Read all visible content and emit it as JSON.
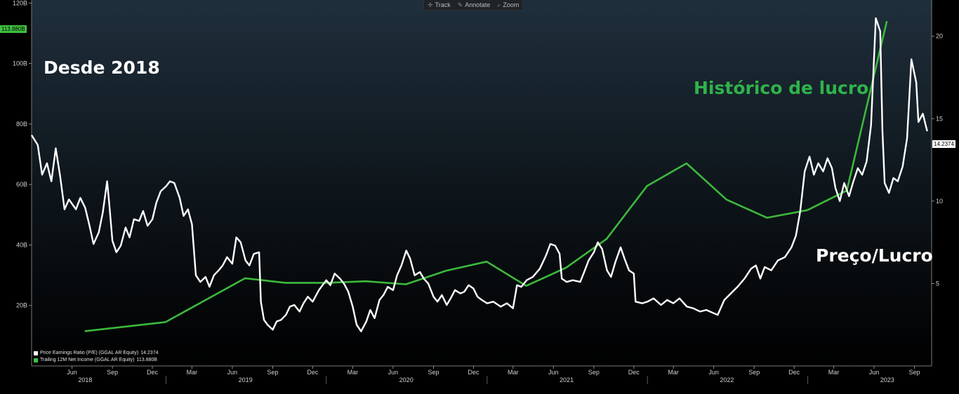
{
  "toolbar": {
    "items": [
      {
        "label": "Track",
        "icon": "crosshair-icon",
        "glyph": "✛"
      },
      {
        "label": "Annotate",
        "icon": "pencil-icon",
        "glyph": "✎"
      },
      {
        "label": "Zoom",
        "icon": "magnifier-icon",
        "glyph": "⌕"
      }
    ]
  },
  "annotations": {
    "period": "Desde 2018",
    "income": "Histórico de lucro",
    "pe": "Preço/Lucro"
  },
  "flags": {
    "left_value": "113.880B",
    "right_value": "14.2374"
  },
  "legend": {
    "items": [
      {
        "label": "Price Earnings Ratio (P/E) (GGAL AR Equity)",
        "value": "14.2374",
        "color": "#ffffff"
      },
      {
        "label": "Trailing 12M Net Income (GGAL AR Equity)",
        "value": "113.880B",
        "color": "#3fbf3f"
      }
    ]
  },
  "colors": {
    "pe_line": "#ffffff",
    "income_line": "#3cb93c",
    "income_text": "#2fb34a",
    "axis_text": "#d0d0d0"
  },
  "chart_data": {
    "type": "line",
    "left_axis": {
      "ticks": [
        20,
        40,
        60,
        80,
        100,
        120
      ],
      "tick_labels": [
        "20B",
        "40B",
        "60B",
        "80B",
        "100B",
        "120B"
      ],
      "range": [
        0,
        121
      ]
    },
    "right_axis": {
      "ticks": [
        5,
        10,
        15,
        20
      ],
      "tick_labels": [
        "5",
        "10",
        "15",
        "20"
      ],
      "range": [
        0,
        22.2
      ]
    },
    "x_axis": {
      "range": [
        "2018-03-01",
        "2023-10-10"
      ],
      "ticks": [
        {
          "date": "2018-06-01",
          "label": "Jun"
        },
        {
          "date": "2018-09-01",
          "label": "Sep"
        },
        {
          "date": "2018-12-01",
          "label": "Dec"
        },
        {
          "date": "2019-03-01",
          "label": "Mar"
        },
        {
          "date": "2019-06-01",
          "label": "Jun"
        },
        {
          "date": "2019-09-01",
          "label": "Sep"
        },
        {
          "date": "2019-12-01",
          "label": "Dec"
        },
        {
          "date": "2020-03-01",
          "label": "Mar"
        },
        {
          "date": "2020-06-01",
          "label": "Jun"
        },
        {
          "date": "2020-09-01",
          "label": "Sep"
        },
        {
          "date": "2020-12-01",
          "label": "Dec"
        },
        {
          "date": "2021-03-01",
          "label": "Mar"
        },
        {
          "date": "2021-06-01",
          "label": "Jun"
        },
        {
          "date": "2021-09-01",
          "label": "Sep"
        },
        {
          "date": "2021-12-01",
          "label": "Dec"
        },
        {
          "date": "2022-03-01",
          "label": "Mar"
        },
        {
          "date": "2022-06-01",
          "label": "Jun"
        },
        {
          "date": "2022-09-01",
          "label": "Sep"
        },
        {
          "date": "2022-12-01",
          "label": "Dec"
        },
        {
          "date": "2023-03-01",
          "label": "Mar"
        },
        {
          "date": "2023-06-01",
          "label": "Jun"
        },
        {
          "date": "2023-09-01",
          "label": "Sep"
        }
      ],
      "years": [
        {
          "date": "2018-07-01",
          "label": "2018"
        },
        {
          "date": "2019-07-01",
          "label": "2019"
        },
        {
          "date": "2020-07-01",
          "label": "2020"
        },
        {
          "date": "2021-07-01",
          "label": "2021"
        },
        {
          "date": "2022-07-01",
          "label": "2022"
        },
        {
          "date": "2023-07-01",
          "label": "2023"
        }
      ],
      "year_boundaries": [
        "2019-01-01",
        "2020-01-01",
        "2021-01-01",
        "2022-01-01",
        "2023-01-01"
      ]
    },
    "series": [
      {
        "name": "Trailing 12M Net Income (GGAL AR Equity)",
        "axis": "left",
        "points": [
          [
            "2018-06-30",
            11.5
          ],
          [
            "2018-09-30",
            13
          ],
          [
            "2018-12-31",
            14.5
          ],
          [
            "2019-06-30",
            29
          ],
          [
            "2019-09-30",
            27.5
          ],
          [
            "2019-12-31",
            27.5
          ],
          [
            "2020-03-31",
            28
          ],
          [
            "2020-06-30",
            27
          ],
          [
            "2020-09-30",
            31.5
          ],
          [
            "2020-12-31",
            34.5
          ],
          [
            "2021-03-31",
            26.5
          ],
          [
            "2021-06-30",
            32.5
          ],
          [
            "2021-09-30",
            42
          ],
          [
            "2021-12-31",
            59.5
          ],
          [
            "2022-03-31",
            67
          ],
          [
            "2022-06-30",
            55
          ],
          [
            "2022-09-30",
            49
          ],
          [
            "2022-12-31",
            51.5
          ],
          [
            "2023-03-31",
            58
          ],
          [
            "2023-06-30",
            114
          ]
        ]
      },
      {
        "name": "Price Earnings Ratio (P/E) (GGAL AR Equity)",
        "axis": "right",
        "points": [
          [
            "2018-03-01",
            14
          ],
          [
            "2018-03-15",
            13.4
          ],
          [
            "2018-03-25",
            11.6
          ],
          [
            "2018-04-05",
            12.3
          ],
          [
            "2018-04-15",
            11.2
          ],
          [
            "2018-04-25",
            13.2
          ],
          [
            "2018-05-05",
            11.5
          ],
          [
            "2018-05-15",
            9.5
          ],
          [
            "2018-05-25",
            10.1
          ],
          [
            "2018-06-10",
            9.5
          ],
          [
            "2018-06-20",
            10.2
          ],
          [
            "2018-07-01",
            9.6
          ],
          [
            "2018-07-10",
            8.6
          ],
          [
            "2018-07-20",
            7.4
          ],
          [
            "2018-08-01",
            8.1
          ],
          [
            "2018-08-10",
            9.3
          ],
          [
            "2018-08-20",
            11.2
          ],
          [
            "2018-08-25",
            9.8
          ],
          [
            "2018-09-01",
            7.6
          ],
          [
            "2018-09-10",
            6.9
          ],
          [
            "2018-09-20",
            7.3
          ],
          [
            "2018-10-01",
            8.4
          ],
          [
            "2018-10-10",
            7.8
          ],
          [
            "2018-10-20",
            8.9
          ],
          [
            "2018-11-01",
            8.8
          ],
          [
            "2018-11-10",
            9.4
          ],
          [
            "2018-11-20",
            8.5
          ],
          [
            "2018-12-01",
            8.9
          ],
          [
            "2018-12-10",
            9.9
          ],
          [
            "2018-12-20",
            10.6
          ],
          [
            "2019-01-01",
            10.9
          ],
          [
            "2019-01-10",
            11.2
          ],
          [
            "2019-01-20",
            11.1
          ],
          [
            "2019-02-01",
            10.2
          ],
          [
            "2019-02-10",
            9.1
          ],
          [
            "2019-02-20",
            9.5
          ],
          [
            "2019-03-01",
            8.6
          ],
          [
            "2019-03-10",
            5.5
          ],
          [
            "2019-03-20",
            5.1
          ],
          [
            "2019-04-01",
            5.4
          ],
          [
            "2019-04-10",
            4.8
          ],
          [
            "2019-04-20",
            5.5
          ],
          [
            "2019-05-01",
            5.8
          ],
          [
            "2019-05-10",
            6.1
          ],
          [
            "2019-05-20",
            6.6
          ],
          [
            "2019-06-01",
            6.2
          ],
          [
            "2019-06-10",
            7.8
          ],
          [
            "2019-06-20",
            7.5
          ],
          [
            "2019-07-01",
            6.4
          ],
          [
            "2019-07-10",
            6.1
          ],
          [
            "2019-07-20",
            6.8
          ],
          [
            "2019-08-01",
            6.9
          ],
          [
            "2019-08-05",
            3.9
          ],
          [
            "2019-08-12",
            2.8
          ],
          [
            "2019-08-20",
            2.5
          ],
          [
            "2019-09-01",
            2.2
          ],
          [
            "2019-09-10",
            2.7
          ],
          [
            "2019-09-20",
            2.8
          ],
          [
            "2019-10-01",
            3.1
          ],
          [
            "2019-10-10",
            3.6
          ],
          [
            "2019-10-20",
            3.7
          ],
          [
            "2019-11-01",
            3.3
          ],
          [
            "2019-11-10",
            3.8
          ],
          [
            "2019-11-20",
            4.2
          ],
          [
            "2019-12-01",
            3.9
          ],
          [
            "2019-12-15",
            4.6
          ],
          [
            "2020-01-01",
            5.2
          ],
          [
            "2020-01-10",
            4.9
          ],
          [
            "2020-01-20",
            5.6
          ],
          [
            "2020-02-01",
            5.3
          ],
          [
            "2020-02-10",
            5.0
          ],
          [
            "2020-02-20",
            4.5
          ],
          [
            "2020-03-01",
            3.6
          ],
          [
            "2020-03-10",
            2.5
          ],
          [
            "2020-03-20",
            2.1
          ],
          [
            "2020-04-01",
            2.7
          ],
          [
            "2020-04-10",
            3.4
          ],
          [
            "2020-04-20",
            2.9
          ],
          [
            "2020-05-01",
            4.0
          ],
          [
            "2020-05-10",
            4.3
          ],
          [
            "2020-05-20",
            4.8
          ],
          [
            "2020-06-01",
            4.6
          ],
          [
            "2020-06-10",
            5.5
          ],
          [
            "2020-06-20",
            6.1
          ],
          [
            "2020-07-01",
            7.0
          ],
          [
            "2020-07-10",
            6.5
          ],
          [
            "2020-07-20",
            5.5
          ],
          [
            "2020-08-01",
            5.7
          ],
          [
            "2020-08-10",
            5.3
          ],
          [
            "2020-08-20",
            5.0
          ],
          [
            "2020-09-01",
            4.2
          ],
          [
            "2020-09-10",
            3.9
          ],
          [
            "2020-09-20",
            4.3
          ],
          [
            "2020-10-01",
            3.7
          ],
          [
            "2020-10-10",
            4.1
          ],
          [
            "2020-10-20",
            4.6
          ],
          [
            "2020-11-01",
            4.4
          ],
          [
            "2020-11-10",
            4.5
          ],
          [
            "2020-11-20",
            4.9
          ],
          [
            "2020-12-01",
            4.7
          ],
          [
            "2020-12-10",
            4.2
          ],
          [
            "2020-12-20",
            4.0
          ],
          [
            "2021-01-01",
            3.8
          ],
          [
            "2021-01-15",
            3.9
          ],
          [
            "2021-02-01",
            3.6
          ],
          [
            "2021-02-15",
            3.8
          ],
          [
            "2021-03-01",
            3.5
          ],
          [
            "2021-03-10",
            4.9
          ],
          [
            "2021-03-20",
            4.8
          ],
          [
            "2021-04-01",
            5.2
          ],
          [
            "2021-04-15",
            5.4
          ],
          [
            "2021-05-01",
            5.9
          ],
          [
            "2021-05-15",
            6.7
          ],
          [
            "2021-05-25",
            7.4
          ],
          [
            "2021-06-05",
            7.3
          ],
          [
            "2021-06-15",
            6.8
          ],
          [
            "2021-06-20",
            5.3
          ],
          [
            "2021-07-01",
            5.1
          ],
          [
            "2021-07-15",
            5.2
          ],
          [
            "2021-08-01",
            5.1
          ],
          [
            "2021-08-10",
            5.7
          ],
          [
            "2021-08-20",
            6.4
          ],
          [
            "2021-09-01",
            6.9
          ],
          [
            "2021-09-10",
            7.5
          ],
          [
            "2021-09-20",
            7.1
          ],
          [
            "2021-10-01",
            5.8
          ],
          [
            "2021-10-10",
            5.4
          ],
          [
            "2021-10-20",
            6.3
          ],
          [
            "2021-11-01",
            7.2
          ],
          [
            "2021-11-10",
            6.5
          ],
          [
            "2021-11-20",
            5.8
          ],
          [
            "2021-12-01",
            5.6
          ],
          [
            "2021-12-05",
            3.9
          ],
          [
            "2021-12-20",
            3.8
          ],
          [
            "2022-01-01",
            3.9
          ],
          [
            "2022-01-15",
            4.1
          ],
          [
            "2022-02-01",
            3.7
          ],
          [
            "2022-02-15",
            4.0
          ],
          [
            "2022-03-01",
            3.8
          ],
          [
            "2022-03-15",
            4.1
          ],
          [
            "2022-04-01",
            3.6
          ],
          [
            "2022-04-15",
            3.5
          ],
          [
            "2022-05-01",
            3.3
          ],
          [
            "2022-05-15",
            3.4
          ],
          [
            "2022-06-01",
            3.2
          ],
          [
            "2022-06-10",
            3.1
          ],
          [
            "2022-06-25",
            4.0
          ],
          [
            "2022-07-10",
            4.4
          ],
          [
            "2022-07-25",
            4.8
          ],
          [
            "2022-08-10",
            5.3
          ],
          [
            "2022-08-25",
            5.9
          ],
          [
            "2022-09-05",
            6.1
          ],
          [
            "2022-09-15",
            5.3
          ],
          [
            "2022-09-25",
            6.0
          ],
          [
            "2022-10-10",
            5.8
          ],
          [
            "2022-10-25",
            6.4
          ],
          [
            "2022-11-10",
            6.6
          ],
          [
            "2022-11-25",
            7.2
          ],
          [
            "2022-12-05",
            7.9
          ],
          [
            "2022-12-15",
            9.4
          ],
          [
            "2022-12-25",
            11.8
          ],
          [
            "2023-01-05",
            12.7
          ],
          [
            "2023-01-15",
            11.6
          ],
          [
            "2023-01-25",
            12.3
          ],
          [
            "2023-02-05",
            11.8
          ],
          [
            "2023-02-15",
            12.6
          ],
          [
            "2023-02-25",
            12.0
          ],
          [
            "2023-03-05",
            10.8
          ],
          [
            "2023-03-15",
            10.0
          ],
          [
            "2023-03-25",
            11.1
          ],
          [
            "2023-04-05",
            10.3
          ],
          [
            "2023-04-15",
            11.2
          ],
          [
            "2023-04-25",
            12.0
          ],
          [
            "2023-05-05",
            11.6
          ],
          [
            "2023-05-15",
            12.4
          ],
          [
            "2023-05-25",
            14.6
          ],
          [
            "2023-06-05",
            21.1
          ],
          [
            "2023-06-15",
            20.3
          ],
          [
            "2023-06-20",
            14.3
          ],
          [
            "2023-06-25",
            11.1
          ],
          [
            "2023-07-05",
            10.5
          ],
          [
            "2023-07-15",
            11.4
          ],
          [
            "2023-07-25",
            11.2
          ],
          [
            "2023-08-05",
            12.1
          ],
          [
            "2023-08-15",
            13.8
          ],
          [
            "2023-08-25",
            18.6
          ],
          [
            "2023-09-05",
            17.2
          ],
          [
            "2023-09-10",
            14.8
          ],
          [
            "2023-09-20",
            15.3
          ],
          [
            "2023-09-30",
            14.2374
          ]
        ]
      }
    ]
  }
}
